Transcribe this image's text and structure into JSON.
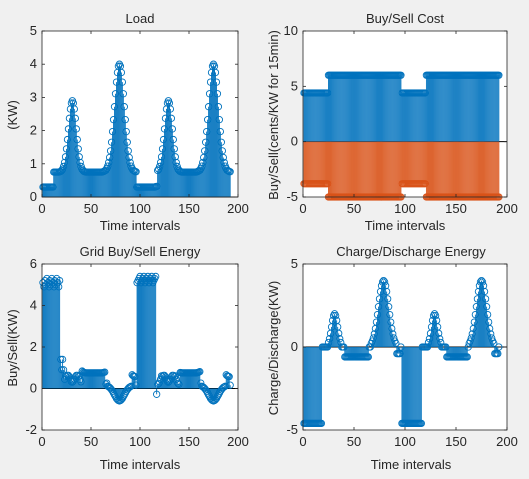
{
  "chart_data": [
    {
      "type": "stem",
      "title": "Load",
      "xlabel": "Time intervals",
      "ylabel": "(KW)",
      "xlim": [
        0,
        200
      ],
      "ylim": [
        0,
        5
      ],
      "xticks": [
        0,
        50,
        100,
        150,
        200
      ],
      "yticks": [
        0,
        1,
        2,
        3,
        4,
        5
      ],
      "series": [
        {
          "color": "#0072BD",
          "x": [
            1,
            192
          ],
          "values_profile": "load"
        }
      ]
    },
    {
      "type": "stem",
      "title": "Buy/Sell Cost",
      "xlabel": "Time intervals",
      "ylabel": "Buy/Sell(cents/KW for 15min)",
      "xlim": [
        0,
        200
      ],
      "ylim": [
        -5,
        10
      ],
      "xticks": [
        0,
        50,
        100,
        150,
        200
      ],
      "yticks": [
        -5,
        0,
        5,
        10
      ],
      "series": [
        {
          "color": "#0072BD",
          "segments": [
            [
              1,
              24,
              4.4
            ],
            [
              25,
              96,
              6.0
            ],
            [
              97,
              120,
              4.4
            ],
            [
              121,
              192,
              6.0
            ]
          ]
        },
        {
          "color": "#D95319",
          "segments": [
            [
              1,
              24,
              -3.8
            ],
            [
              25,
              96,
              -5.0
            ],
            [
              97,
              120,
              -3.8
            ],
            [
              121,
              192,
              -5.0
            ]
          ]
        }
      ]
    },
    {
      "type": "stem",
      "title": "Grid Buy/Sell Energy",
      "xlabel": "Time intervals",
      "ylabel": "Buy/Sell(KW)",
      "xlim": [
        0,
        200
      ],
      "ylim": [
        -2,
        6
      ],
      "xticks": [
        0,
        50,
        100,
        150,
        200
      ],
      "yticks": [
        -2,
        0,
        2,
        4,
        6
      ],
      "series": [
        {
          "color": "#0072BD",
          "values_profile": "grid"
        }
      ]
    },
    {
      "type": "stem",
      "title": "Charge/Discharge Energy",
      "xlabel": "Time intervals",
      "ylabel": "Charge/Discharge(KW)",
      "xlim": [
        0,
        200
      ],
      "ylim": [
        -5,
        5
      ],
      "xticks": [
        0,
        50,
        100,
        150,
        200
      ],
      "yticks": [
        -5,
        0,
        5
      ],
      "series": [
        {
          "color": "#0072BD",
          "values_profile": "battery"
        }
      ]
    }
  ]
}
